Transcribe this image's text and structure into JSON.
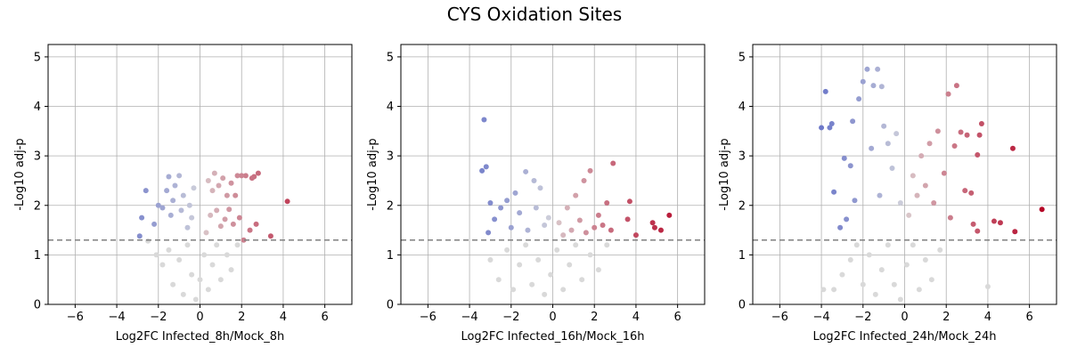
{
  "figure_title": "CYS Oxidation Sites",
  "threshold_y": 1.3,
  "colors": {
    "nonsignificant": "#d9d9d9",
    "threshold_line": "#808080",
    "grid": "#b0b0b0",
    "colormap_low": "#3b4cc0",
    "colormap_mid": "#dddddd",
    "colormap_high": "#b40426"
  },
  "chart_data": [
    {
      "type": "scatter",
      "title": "",
      "xlabel": "Log2FC Infected_8h/Mock_8h",
      "ylabel": "-Log10 adj-p",
      "xlim": [
        -7.3,
        7.3
      ],
      "ylim": [
        0,
        5.25
      ],
      "xticks": [
        -6,
        -4,
        -2,
        0,
        2,
        4,
        6
      ],
      "xtick_labels": [
        "−6",
        "−4",
        "−2",
        "0",
        "2",
        "4",
        "6"
      ],
      "yticks": [
        0,
        1,
        2,
        3,
        4,
        5
      ],
      "ytick_labels": [
        "0",
        "1",
        "2",
        "3",
        "4",
        "5"
      ],
      "grid": true,
      "significant_points": [
        [
          4.2,
          2.08
        ],
        [
          3.4,
          1.38
        ],
        [
          2.8,
          2.65
        ],
        [
          2.7,
          1.62
        ],
        [
          2.6,
          2.58
        ],
        [
          2.5,
          2.55
        ],
        [
          2.4,
          1.5
        ],
        [
          2.2,
          2.6
        ],
        [
          2.1,
          1.3
        ],
        [
          2.0,
          2.6
        ],
        [
          1.9,
          1.75
        ],
        [
          1.8,
          2.6
        ],
        [
          1.7,
          2.2
        ],
        [
          1.6,
          1.62
        ],
        [
          1.5,
          2.45
        ],
        [
          1.4,
          1.92
        ],
        [
          1.3,
          2.2
        ],
        [
          1.2,
          1.72
        ],
        [
          1.1,
          2.55
        ],
        [
          1.0,
          1.58
        ],
        [
          0.9,
          2.4
        ],
        [
          0.8,
          1.9
        ],
        [
          0.7,
          2.65
        ],
        [
          0.6,
          2.3
        ],
        [
          0.5,
          1.8
        ],
        [
          0.4,
          2.5
        ],
        [
          0.3,
          1.45
        ],
        [
          -2.9,
          1.38
        ],
        [
          -2.8,
          1.75
        ],
        [
          -2.6,
          2.3
        ],
        [
          -2.2,
          1.62
        ],
        [
          -2.0,
          2.0
        ],
        [
          -1.8,
          1.95
        ],
        [
          -1.6,
          2.3
        ],
        [
          -1.5,
          2.58
        ],
        [
          -1.4,
          1.8
        ],
        [
          -1.3,
          2.1
        ],
        [
          -1.2,
          2.4
        ],
        [
          -1.0,
          2.6
        ],
        [
          -0.9,
          1.9
        ],
        [
          -0.8,
          2.2
        ],
        [
          -0.6,
          1.55
        ],
        [
          -0.5,
          2.0
        ],
        [
          -0.4,
          1.75
        ],
        [
          -0.3,
          2.35
        ]
      ],
      "nonsignificant_points": [
        [
          -2.5,
          1.28
        ],
        [
          -1.8,
          0.8
        ],
        [
          -1.5,
          1.1
        ],
        [
          -1.3,
          0.4
        ],
        [
          -1.0,
          0.9
        ],
        [
          -0.8,
          0.2
        ],
        [
          -0.6,
          1.2
        ],
        [
          -0.4,
          0.6
        ],
        [
          -0.2,
          0.1
        ],
        [
          0.0,
          0.5
        ],
        [
          0.2,
          1.0
        ],
        [
          0.4,
          0.3
        ],
        [
          0.6,
          0.8
        ],
        [
          0.8,
          1.2
        ],
        [
          1.0,
          0.5
        ],
        [
          1.3,
          1.0
        ],
        [
          1.5,
          0.7
        ],
        [
          1.8,
          1.2
        ],
        [
          -2.1,
          1.0
        ]
      ]
    },
    {
      "type": "scatter",
      "title": "",
      "xlabel": "Log2FC Infected_16h/Mock_16h",
      "ylabel": "-Log10 adj-p",
      "xlim": [
        -7.3,
        7.3
      ],
      "ylim": [
        0,
        5.25
      ],
      "xticks": [
        -6,
        -4,
        -2,
        0,
        2,
        4,
        6
      ],
      "xtick_labels": [
        "−6",
        "−4",
        "−2",
        "0",
        "2",
        "4",
        "6"
      ],
      "yticks": [
        0,
        1,
        2,
        3,
        4,
        5
      ],
      "ytick_labels": [
        "0",
        "1",
        "2",
        "3",
        "4",
        "5"
      ],
      "grid": true,
      "significant_points": [
        [
          5.6,
          1.8
        ],
        [
          5.2,
          1.5
        ],
        [
          4.9,
          1.55
        ],
        [
          4.8,
          1.65
        ],
        [
          4.0,
          1.4
        ],
        [
          3.7,
          2.08
        ],
        [
          3.6,
          1.72
        ],
        [
          2.9,
          2.85
        ],
        [
          2.8,
          1.5
        ],
        [
          2.6,
          2.05
        ],
        [
          2.4,
          1.6
        ],
        [
          2.2,
          1.8
        ],
        [
          2.0,
          1.55
        ],
        [
          1.8,
          2.7
        ],
        [
          1.6,
          1.45
        ],
        [
          1.5,
          2.5
        ],
        [
          1.3,
          1.7
        ],
        [
          1.1,
          2.2
        ],
        [
          0.9,
          1.5
        ],
        [
          0.7,
          1.95
        ],
        [
          0.5,
          1.4
        ],
        [
          0.3,
          1.65
        ],
        [
          -3.3,
          3.73
        ],
        [
          -3.2,
          2.78
        ],
        [
          -3.4,
          2.7
        ],
        [
          -3.0,
          2.05
        ],
        [
          -3.1,
          1.45
        ],
        [
          -2.8,
          1.72
        ],
        [
          -2.5,
          1.95
        ],
        [
          -2.2,
          2.1
        ],
        [
          -2.0,
          1.55
        ],
        [
          -1.8,
          2.25
        ],
        [
          -1.6,
          1.85
        ],
        [
          -1.3,
          2.68
        ],
        [
          -1.2,
          1.5
        ],
        [
          -0.9,
          2.5
        ],
        [
          -0.8,
          1.95
        ],
        [
          -0.6,
          2.35
        ],
        [
          -0.4,
          1.6
        ],
        [
          -0.2,
          1.75
        ]
      ],
      "nonsignificant_points": [
        [
          -3.0,
          0.9
        ],
        [
          -2.6,
          0.5
        ],
        [
          -2.2,
          1.1
        ],
        [
          -1.9,
          0.3
        ],
        [
          -1.6,
          0.8
        ],
        [
          -1.3,
          1.2
        ],
        [
          -1.0,
          0.4
        ],
        [
          -0.7,
          0.9
        ],
        [
          -0.4,
          0.2
        ],
        [
          -0.1,
          0.6
        ],
        [
          0.2,
          1.1
        ],
        [
          0.5,
          0.3
        ],
        [
          0.8,
          0.8
        ],
        [
          1.1,
          1.2
        ],
        [
          1.4,
          0.5
        ],
        [
          1.8,
          1.0
        ],
        [
          2.2,
          0.7
        ],
        [
          2.6,
          1.2
        ]
      ]
    },
    {
      "type": "scatter",
      "title": "",
      "xlabel": "Log2FC Infected_24h/Mock_24h",
      "ylabel": "-Log10 adj-p",
      "xlim": [
        -7.3,
        7.3
      ],
      "ylim": [
        0,
        5.25
      ],
      "xticks": [
        -6,
        -4,
        -2,
        0,
        2,
        4,
        6
      ],
      "xtick_labels": [
        "−6",
        "−4",
        "−2",
        "0",
        "2",
        "4",
        "6"
      ],
      "yticks": [
        0,
        1,
        2,
        3,
        4,
        5
      ],
      "ytick_labels": [
        "0",
        "1",
        "2",
        "3",
        "4",
        "5"
      ],
      "grid": true,
      "significant_points": [
        [
          6.6,
          1.92
        ],
        [
          5.3,
          1.47
        ],
        [
          5.2,
          3.15
        ],
        [
          4.6,
          1.65
        ],
        [
          4.3,
          1.68
        ],
        [
          3.7,
          3.65
        ],
        [
          3.6,
          3.42
        ],
        [
          3.5,
          1.48
        ],
        [
          3.5,
          3.02
        ],
        [
          3.3,
          1.62
        ],
        [
          3.2,
          2.25
        ],
        [
          3.0,
          3.42
        ],
        [
          2.9,
          2.3
        ],
        [
          2.7,
          3.48
        ],
        [
          2.5,
          4.42
        ],
        [
          2.4,
          3.2
        ],
        [
          2.2,
          1.75
        ],
        [
          2.1,
          4.25
        ],
        [
          1.9,
          2.65
        ],
        [
          1.6,
          3.5
        ],
        [
          1.4,
          2.05
        ],
        [
          1.2,
          3.25
        ],
        [
          1.0,
          2.4
        ],
        [
          0.8,
          3.0
        ],
        [
          0.6,
          2.2
        ],
        [
          0.4,
          2.6
        ],
        [
          0.2,
          1.8
        ],
        [
          -3.8,
          4.3
        ],
        [
          -4.0,
          3.57
        ],
        [
          -3.6,
          3.57
        ],
        [
          -3.5,
          3.65
        ],
        [
          -3.4,
          2.27
        ],
        [
          -3.1,
          1.55
        ],
        [
          -2.9,
          2.95
        ],
        [
          -2.8,
          1.72
        ],
        [
          -2.6,
          2.8
        ],
        [
          -2.5,
          3.7
        ],
        [
          -2.4,
          2.1
        ],
        [
          -2.2,
          4.15
        ],
        [
          -2.0,
          4.5
        ],
        [
          -1.8,
          4.75
        ],
        [
          -1.6,
          3.15
        ],
        [
          -1.5,
          4.42
        ],
        [
          -1.3,
          4.75
        ],
        [
          -1.2,
          2.2
        ],
        [
          -1.1,
          4.4
        ],
        [
          -1.0,
          3.6
        ],
        [
          -0.8,
          3.25
        ],
        [
          -0.6,
          2.75
        ],
        [
          -0.4,
          3.45
        ],
        [
          -0.2,
          2.05
        ]
      ],
      "nonsignificant_points": [
        [
          -3.9,
          0.3
        ],
        [
          -3.4,
          0.3
        ],
        [
          -3.0,
          0.6
        ],
        [
          -2.6,
          0.9
        ],
        [
          -2.3,
          1.2
        ],
        [
          -2.0,
          0.4
        ],
        [
          -1.7,
          1.0
        ],
        [
          -1.4,
          0.2
        ],
        [
          -1.1,
          0.7
        ],
        [
          -0.8,
          1.2
        ],
        [
          -0.5,
          0.4
        ],
        [
          -0.2,
          0.1
        ],
        [
          0.1,
          0.8
        ],
        [
          0.4,
          1.2
        ],
        [
          0.7,
          0.3
        ],
        [
          1.0,
          0.9
        ],
        [
          1.3,
          0.5
        ],
        [
          1.7,
          1.1
        ],
        [
          4.0,
          0.36
        ]
      ]
    }
  ]
}
